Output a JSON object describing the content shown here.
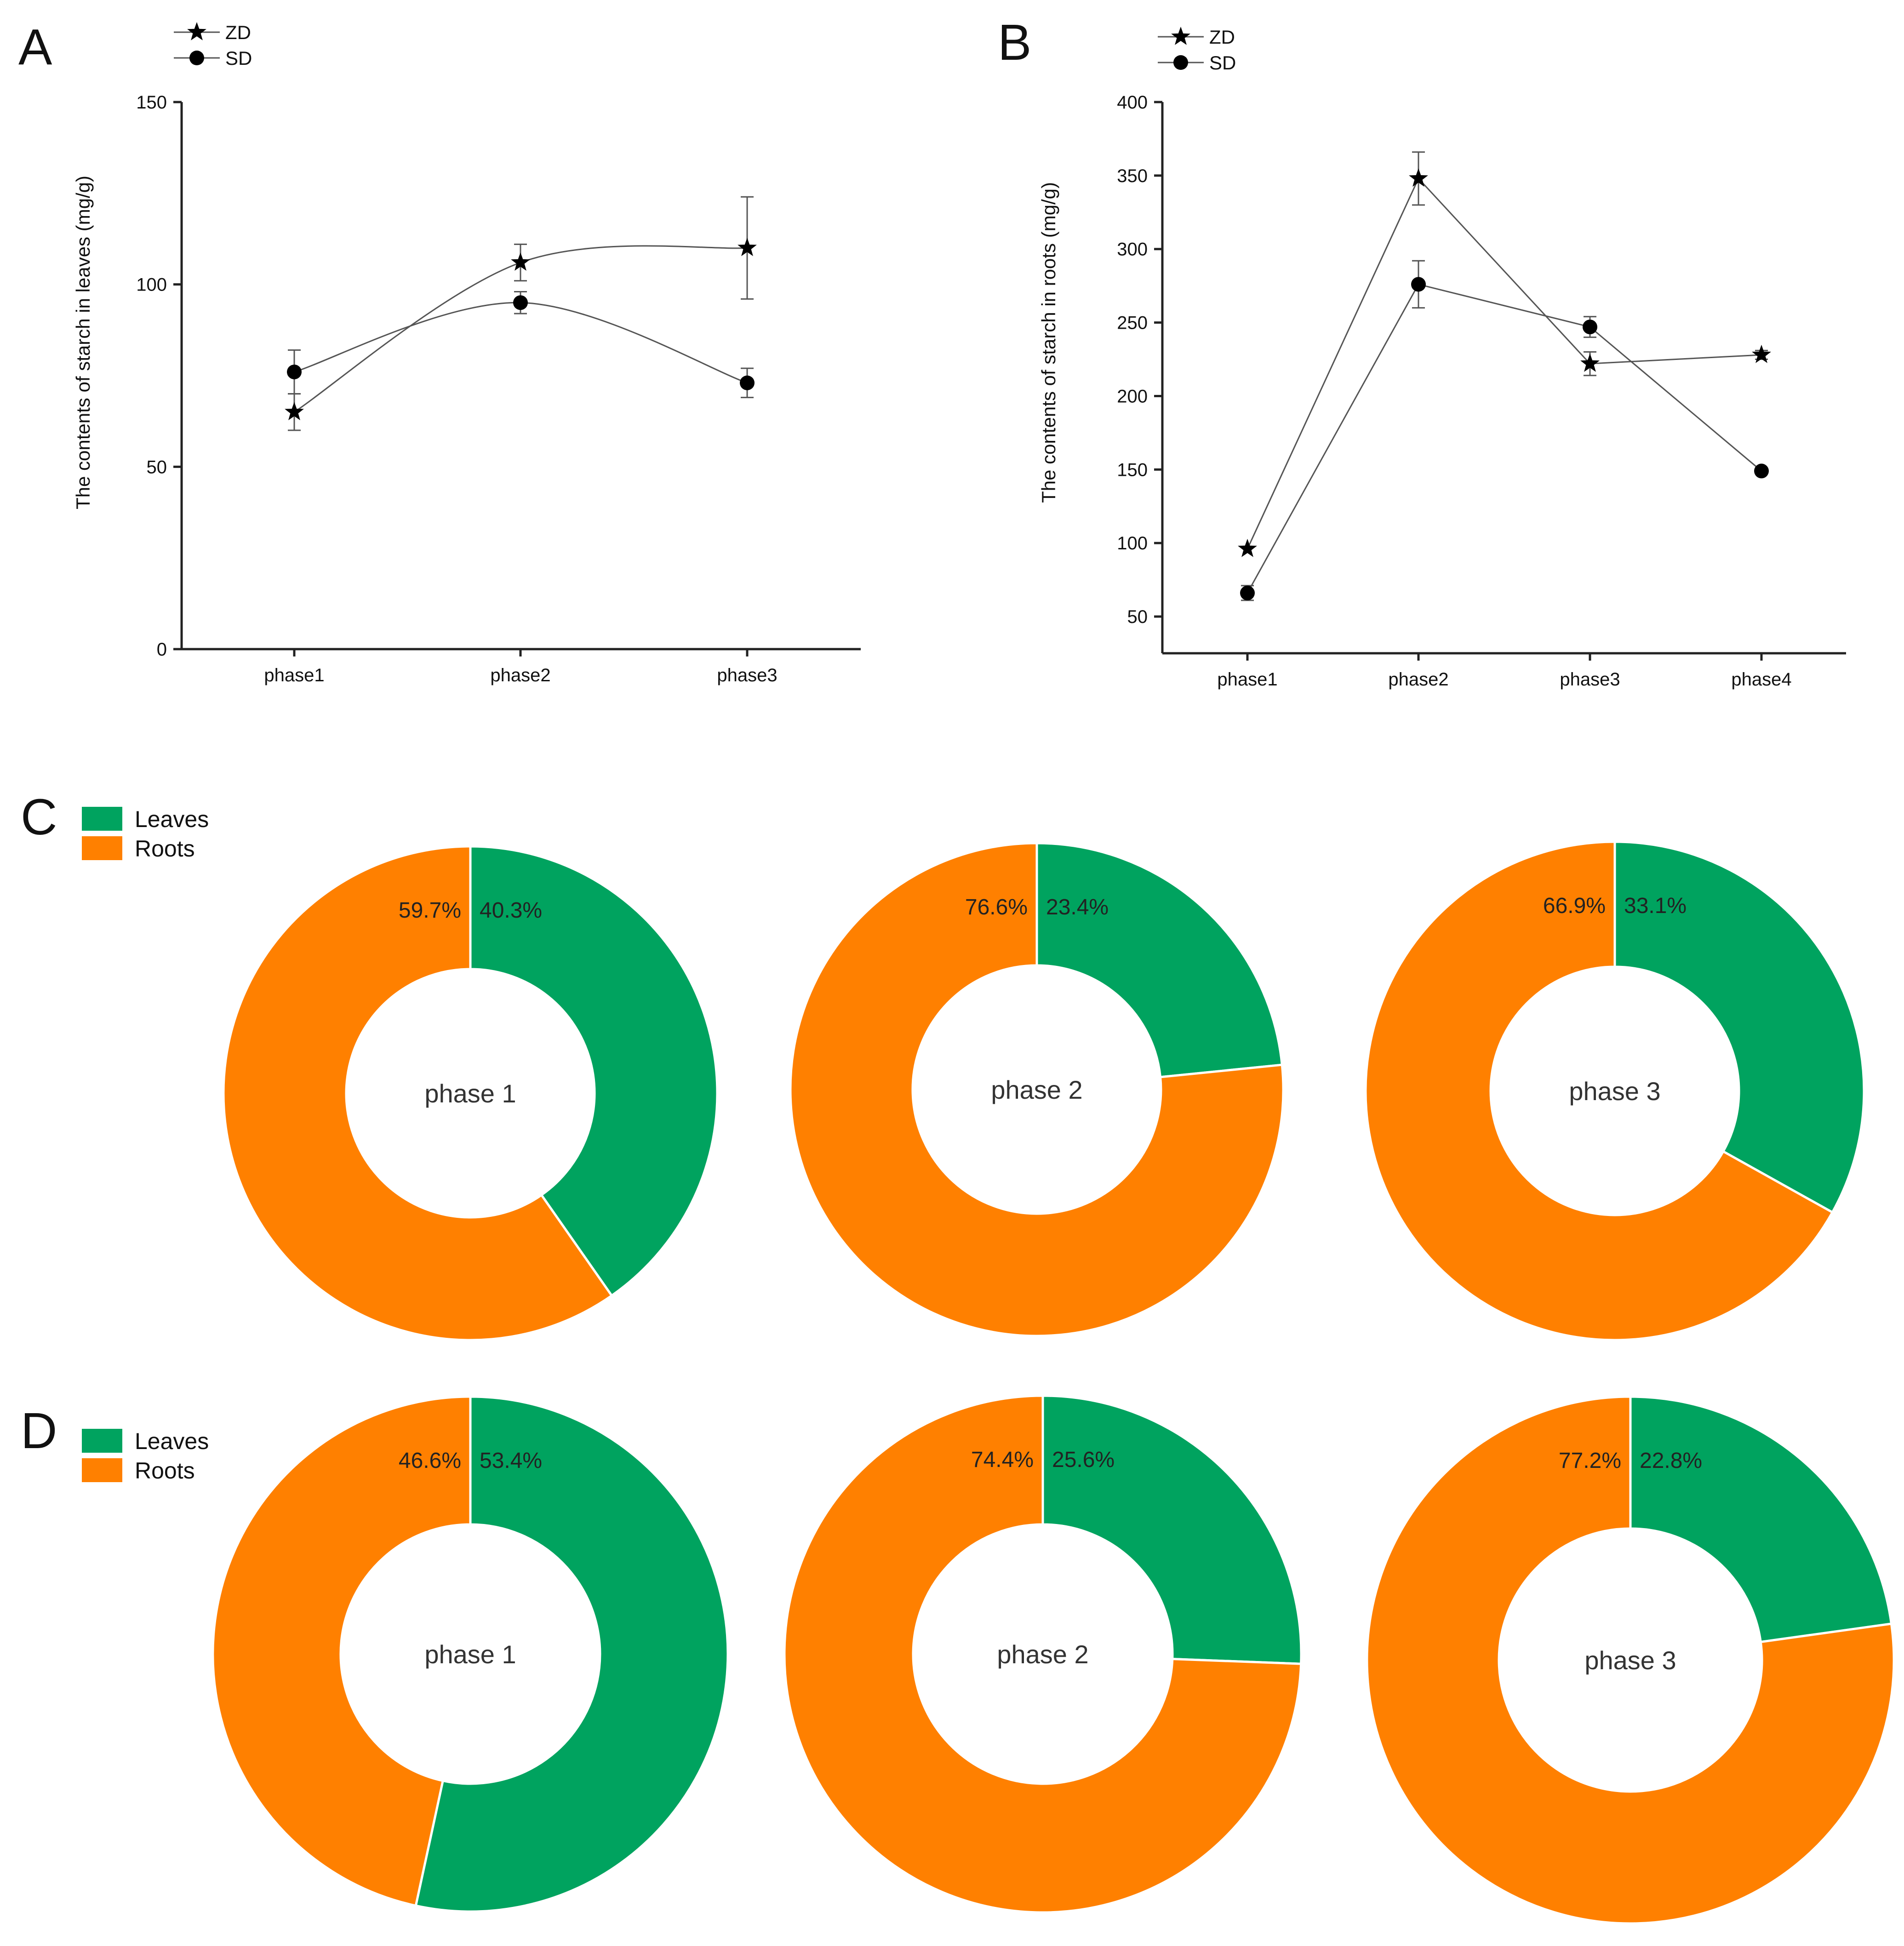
{
  "chart_data": [
    {
      "id": "A",
      "type": "line",
      "panel_label": "A",
      "title": "",
      "xlabel": "",
      "ylabel": "The contents of starch in leaves  (mg/g)",
      "categories": [
        "phase1",
        "phase2",
        "phase3"
      ],
      "ylim": [
        0,
        150
      ],
      "yticks": [
        0,
        50,
        100,
        150
      ],
      "grid": false,
      "legend": "top-left",
      "series": [
        {
          "name": "ZD",
          "marker": "star",
          "values": [
            65,
            106,
            110
          ],
          "errors": [
            5,
            5,
            14
          ]
        },
        {
          "name": "SD",
          "marker": "circle",
          "values": [
            76,
            95,
            73
          ],
          "errors": [
            6,
            3,
            4
          ]
        }
      ]
    },
    {
      "id": "B",
      "type": "line",
      "panel_label": "B",
      "title": "",
      "xlabel": "",
      "ylabel": "The contents of starch in roots  (mg/g)",
      "categories": [
        "phase1",
        "phase2",
        "phase3",
        "phase4"
      ],
      "ylim": [
        25,
        400
      ],
      "yticks": [
        50,
        100,
        150,
        200,
        250,
        300,
        350,
        400
      ],
      "grid": false,
      "legend": "top-left",
      "series": [
        {
          "name": "ZD",
          "marker": "star",
          "values": [
            96,
            348,
            222,
            228
          ],
          "errors": [
            0,
            18,
            8,
            3
          ]
        },
        {
          "name": "SD",
          "marker": "circle",
          "values": [
            66,
            276,
            247,
            149
          ],
          "errors": [
            5,
            16,
            7,
            2
          ]
        }
      ]
    },
    {
      "id": "C",
      "type": "pie",
      "style": "donut",
      "panel_label": "C",
      "legend": "top-left",
      "legend_entries": [
        {
          "name": "Leaves",
          "color": "#00a35f"
        },
        {
          "name": "Roots",
          "color": "#ff8000"
        }
      ],
      "donuts": [
        {
          "center_label": "phase 1",
          "leaves": 40.3,
          "roots": 59.7,
          "leaves_label": "40.3%",
          "roots_label": "59.7%"
        },
        {
          "center_label": "phase 2",
          "leaves": 23.4,
          "roots": 76.6,
          "leaves_label": "23.4%",
          "roots_label": "76.6%"
        },
        {
          "center_label": "phase 3",
          "leaves": 33.1,
          "roots": 66.9,
          "leaves_label": "33.1%",
          "roots_label": "66.9%"
        }
      ]
    },
    {
      "id": "D",
      "type": "pie",
      "style": "donut",
      "panel_label": "D",
      "legend": "top-left",
      "legend_entries": [
        {
          "name": "Leaves",
          "color": "#00a35f"
        },
        {
          "name": "Roots",
          "color": "#ff8000"
        }
      ],
      "donuts": [
        {
          "center_label": "phase 1",
          "leaves": 53.4,
          "roots": 46.6,
          "leaves_label": "53.4%",
          "roots_label": "46.6%"
        },
        {
          "center_label": "phase 2",
          "leaves": 25.6,
          "roots": 74.4,
          "leaves_label": "25.6%",
          "roots_label": "74.4%"
        },
        {
          "center_label": "phase 3",
          "leaves": 22.8,
          "roots": 77.2,
          "leaves_label": "22.8%",
          "roots_label": "77.2%"
        }
      ]
    }
  ],
  "colors": {
    "leaves": "#00a35f",
    "roots": "#ff8000",
    "line": "#555555",
    "marker": "#000000"
  }
}
